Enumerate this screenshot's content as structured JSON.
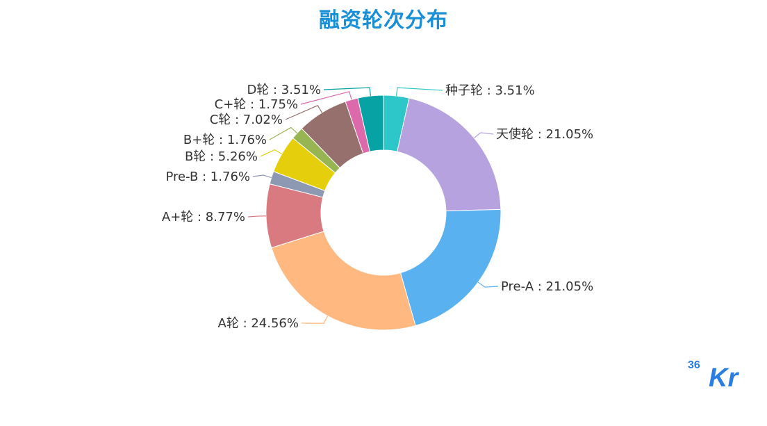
{
  "chart_data": {
    "type": "pie",
    "variant": "donut",
    "title": "融资轮次分布",
    "label_separator": " : ",
    "slices": [
      {
        "label": "种子轮",
        "value": 3.51,
        "display": "3.51%",
        "color": "#2ec7c9"
      },
      {
        "label": "天使轮",
        "value": 21.05,
        "display": "21.05%",
        "color": "#b6a2de"
      },
      {
        "label": "Pre-A",
        "value": 21.05,
        "display": "21.05%",
        "color": "#5ab1ef"
      },
      {
        "label": "A轮",
        "value": 24.56,
        "display": "24.56%",
        "color": "#ffb980"
      },
      {
        "label": "A+轮",
        "value": 8.77,
        "display": "8.77%",
        "color": "#d87a80"
      },
      {
        "label": "Pre-B",
        "value": 1.76,
        "display": "1.76%",
        "color": "#8d98b3"
      },
      {
        "label": "B轮",
        "value": 5.26,
        "display": "5.26%",
        "color": "#e5cf0d"
      },
      {
        "label": "B+轮",
        "value": 1.76,
        "display": "1.76%",
        "color": "#97b552"
      },
      {
        "label": "C轮",
        "value": 7.02,
        "display": "7.02%",
        "color": "#95706d"
      },
      {
        "label": "C+轮",
        "value": 1.75,
        "display": "1.75%",
        "color": "#dc69aa"
      },
      {
        "label": "D轮",
        "value": 3.51,
        "display": "3.51%",
        "color": "#07a2a4"
      }
    ]
  },
  "logo": {
    "text_top": "36",
    "text_main": "Kr",
    "color": "#2a7de1"
  }
}
